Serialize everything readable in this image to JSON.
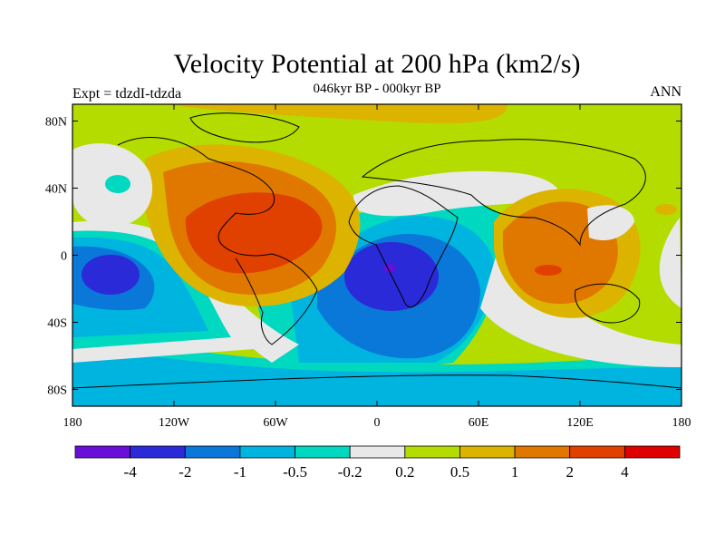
{
  "chart_data": {
    "type": "heatmap",
    "title": "Velocity Potential at 200 hPa (km2/s)",
    "subtitle": "046kyr BP - 000kyr BP",
    "left_label": "Expt = tdzdI-tdzda",
    "right_label": "ANN",
    "x_ticks": [
      "180",
      "120W",
      "60W",
      "0",
      "60E",
      "120E",
      "180"
    ],
    "x_tick_values": [
      -180,
      -120,
      -60,
      0,
      60,
      120,
      180
    ],
    "y_ticks": [
      "80N",
      "40N",
      "0",
      "40S",
      "80S"
    ],
    "y_tick_values": [
      80,
      40,
      0,
      -40,
      -80
    ],
    "xlim": [
      -180,
      180
    ],
    "ylim": [
      -90,
      90
    ],
    "colorbar": {
      "levels": [
        "-4",
        "-2",
        "-1",
        "-0.5",
        "-0.2",
        "0.2",
        "0.5",
        "1",
        "2",
        "4"
      ],
      "colors": [
        "#6a0fd8",
        "#2a2ad8",
        "#0a78d8",
        "#00b4e0",
        "#00d8c0",
        "#e8e8e8",
        "#b4dc00",
        "#dcb400",
        "#e07800",
        "#e04000",
        "#e00000"
      ]
    },
    "fields": [
      {
        "name": "background_positive",
        "level": "0.2 to 0.5",
        "color_index": 6
      },
      {
        "name": "americas_positive_center",
        "center_lon": -90,
        "center_lat": 10,
        "max_level": "2 to 4",
        "color_index": 9
      },
      {
        "name": "maritime_continent_positive",
        "center_lon": 105,
        "center_lat": -5,
        "max_level": "2 to 4",
        "color_index": 9
      },
      {
        "name": "africa_negative_center",
        "center_lon": 5,
        "center_lat": -10,
        "min_level": "-4 to -2",
        "color_index": 1
      },
      {
        "name": "central_pacific_negative",
        "center_lon": -160,
        "center_lat": -10,
        "min_level": "-4 to -2",
        "color_index": 1
      },
      {
        "name": "southern_ocean_negative",
        "center_lon": 0,
        "center_lat": -70,
        "level": "-1 to -0.5",
        "color_index": 3
      }
    ]
  }
}
